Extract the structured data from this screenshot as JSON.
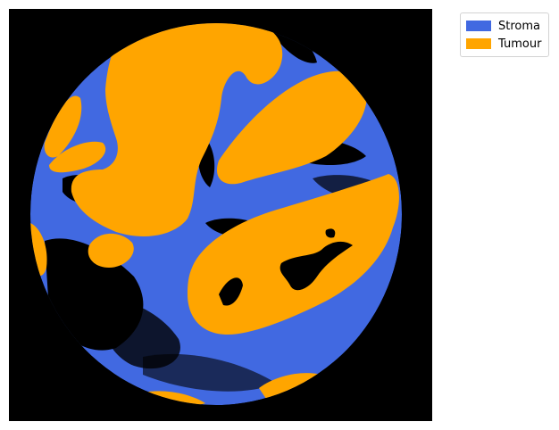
{
  "colors": {
    "background": "#000000",
    "stroma": "#4169e1",
    "tumour": "#ffa500"
  },
  "legend": {
    "items": [
      {
        "label": "Stroma",
        "color": "#4169e1"
      },
      {
        "label": "Tumour",
        "color": "#ffa500"
      }
    ]
  }
}
